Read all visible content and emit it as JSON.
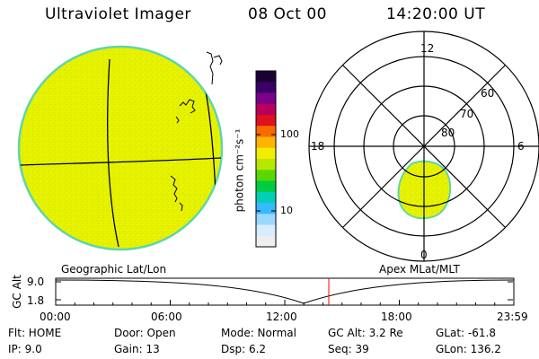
{
  "header": {
    "instrument": "Ultraviolet Imager",
    "date": "08 Oct 00",
    "time": "14:20:00 UT"
  },
  "colors": {
    "fill": "#e6f200",
    "rim": "#5fd6a8",
    "plot_line": "#000000",
    "marker": "#ff0000"
  },
  "colorbar": {
    "unit_label": "photon cm⁻²s⁻¹",
    "ticks": [
      "100",
      "10"
    ],
    "colors_top_to_bottom": [
      "#1a0033",
      "#3a0066",
      "#7a0088",
      "#b8005a",
      "#e0101c",
      "#f86a00",
      "#ffb400",
      "#f2ee00",
      "#b8e800",
      "#58d800",
      "#00cc40",
      "#00d0b8",
      "#38b8ff",
      "#9ad8ff",
      "#d8ecff",
      "#eeeeee"
    ]
  },
  "polar": {
    "mlt_labels": {
      "top": "12",
      "left": "18",
      "right": "6",
      "bottom": "0"
    },
    "lat_labels": [
      "60",
      "70",
      "80"
    ]
  },
  "labels": {
    "geo": "Geographic Lat/Lon",
    "apex": "Apex MLat/MLT"
  },
  "strip": {
    "ylabel": "GC Alt",
    "yticks": [
      "9.0",
      "1.8"
    ],
    "xticks": [
      "00:00",
      "06:00",
      "12:00",
      "18:00",
      "23:59"
    ],
    "marker_time": "14:20"
  },
  "footer": {
    "flt": "Flt: HOME",
    "ip": "IP:  9.0",
    "door": "Door: Open",
    "gain": "Gain: 13",
    "mode": "Mode: Normal",
    "dsp": "Dsp:    6.2",
    "gcalt": "GC Alt: 3.2 Re",
    "seq": "Seq: 39",
    "glat": "GLat: -61.8",
    "glon": "GLon: 136.2"
  }
}
